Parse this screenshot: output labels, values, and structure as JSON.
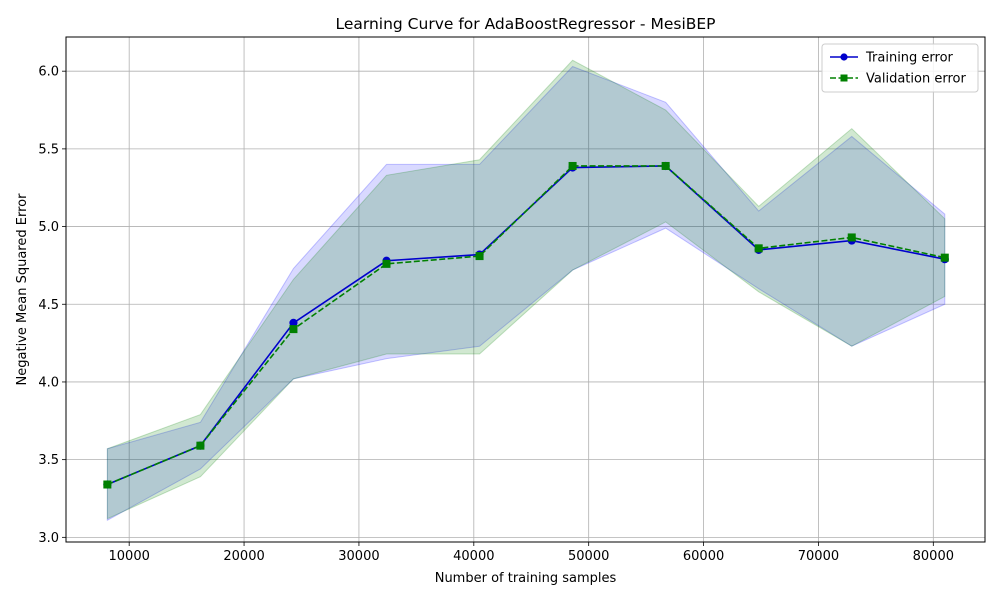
{
  "chart_data": {
    "type": "line",
    "title": "Learning Curve for AdaBoostRegressor - MesiBEP",
    "xlabel": "Number of training samples",
    "ylabel": "Negative Mean Squared Error",
    "xlim": [
      4500,
      84500
    ],
    "ylim": [
      2.97,
      6.22
    ],
    "x_ticks": [
      10000,
      20000,
      30000,
      40000,
      50000,
      60000,
      70000,
      80000
    ],
    "y_ticks": [
      3.0,
      3.5,
      4.0,
      4.5,
      5.0,
      5.5,
      6.0
    ],
    "grid": true,
    "legend_position": "upper right",
    "x": [
      8100,
      16200,
      24300,
      32400,
      40500,
      48600,
      56700,
      64800,
      72900,
      81000
    ],
    "series": [
      {
        "name": "Training error",
        "color": "#0000cc",
        "fill_color": "#0000ff",
        "line_style": "solid",
        "marker": "circle",
        "values": [
          3.34,
          3.59,
          4.38,
          4.78,
          4.82,
          5.38,
          5.39,
          4.85,
          4.91,
          4.79
        ],
        "band_upper": [
          3.57,
          3.74,
          4.73,
          5.4,
          5.4,
          6.03,
          5.8,
          5.1,
          5.58,
          5.08
        ],
        "band_lower": [
          3.11,
          3.44,
          4.02,
          4.15,
          4.23,
          4.72,
          4.99,
          4.6,
          4.23,
          4.5
        ]
      },
      {
        "name": "Validation error",
        "color": "#008000",
        "fill_color": "#008000",
        "line_style": "dashed",
        "marker": "square",
        "values": [
          3.34,
          3.59,
          4.34,
          4.76,
          4.81,
          5.39,
          5.39,
          4.86,
          4.93,
          4.8
        ],
        "band_upper": [
          3.57,
          3.79,
          4.66,
          5.33,
          5.43,
          6.07,
          5.75,
          5.13,
          5.63,
          5.05
        ],
        "band_lower": [
          3.12,
          3.39,
          4.02,
          4.18,
          4.18,
          4.72,
          5.03,
          4.58,
          4.23,
          4.55
        ]
      }
    ]
  }
}
